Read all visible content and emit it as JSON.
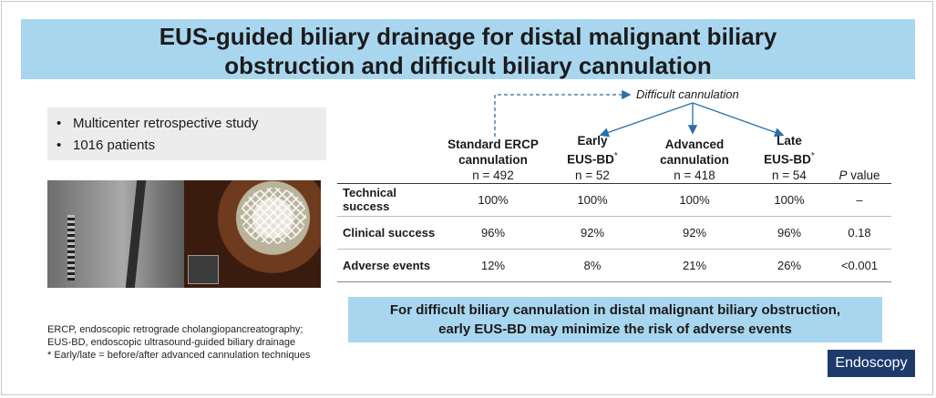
{
  "title": {
    "line1": "EUS-guided biliary drainage for distal malignant biliary",
    "line2": "obstruction and difficult biliary cannulation"
  },
  "bullets": [
    "Multicenter retrospective study",
    "1016 patients"
  ],
  "bullet_glyph": "•",
  "difficult_label": "Difficult cannulation",
  "columns": [
    {
      "l1": "Standard ERCP",
      "l2": "cannulation",
      "n": "n = 492"
    },
    {
      "l1": "Early",
      "l2": "EUS-BD",
      "sup": "*",
      "n": "n = 52"
    },
    {
      "l1": "Advanced",
      "l2": "cannulation",
      "n": "n = 418"
    },
    {
      "l1": "Late",
      "l2": "EUS-BD",
      "sup": "*",
      "n": "n = 54"
    }
  ],
  "p_header": {
    "p": "P",
    "rest": " value"
  },
  "rows": [
    {
      "label": "Technical success",
      "values": [
        "100%",
        "100%",
        "100%",
        "100%",
        "–"
      ]
    },
    {
      "label": "Clinical success",
      "values": [
        "96%",
        "92%",
        "92%",
        "96%",
        "0.18"
      ]
    },
    {
      "label": "Adverse events",
      "values": [
        "12%",
        "8%",
        "21%",
        "26%",
        "<0.001"
      ]
    }
  ],
  "conclusion": {
    "line1": "For difficult biliary cannulation in distal malignant biliary obstruction,",
    "line2": "early EUS-BD may minimize the risk of adverse events"
  },
  "footnotes": [
    "ERCP, endoscopic retrograde cholangiopancreatography;",
    "EUS-BD, endoscopic ultrasound-guided biliary drainage",
    "* Early/late = before/after advanced cannulation techniques"
  ],
  "journal": "Endoscopy",
  "colors": {
    "title_bg": "#a9d6ef",
    "arrow": "#2a6fa8",
    "journal_bg": "#1d3a6b"
  }
}
